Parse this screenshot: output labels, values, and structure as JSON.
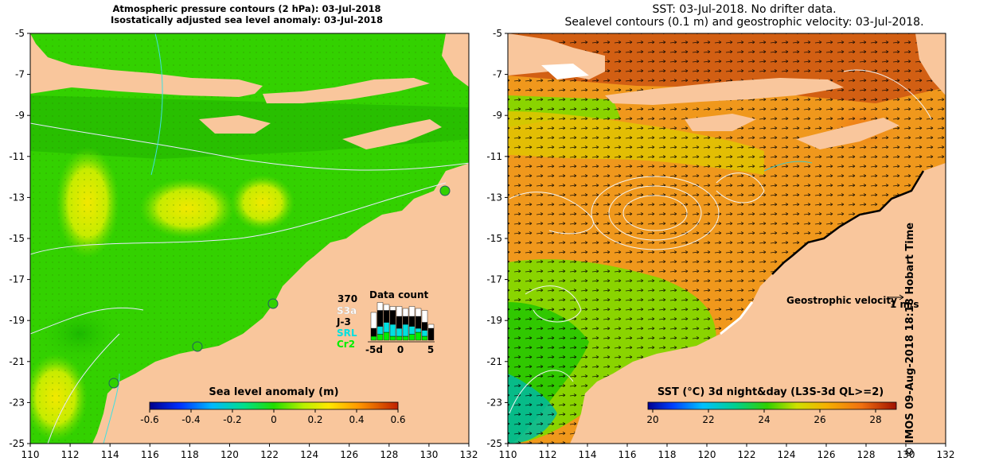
{
  "left_panel": {
    "title_line1": "Atmospheric pressure contours (2 hPa): 03-Jul-2018",
    "title_line2": "Isostatically adjusted sea level anomaly: 03-Jul-2018",
    "colorbar": {
      "label": "Sea level anomaly (m)",
      "ticks": [
        "-0.6",
        "-0.4",
        "-0.2",
        "0",
        "0.2",
        "0.4",
        "0.6"
      ]
    },
    "data_count": {
      "title": "Data count",
      "max_label": "370",
      "legend": [
        {
          "name": "S3a",
          "color": "#ffffff"
        },
        {
          "name": "J-3",
          "color": "#000000"
        },
        {
          "name": "SRL",
          "color": "#00e0e0"
        },
        {
          "name": "Cr2",
          "color": "#00ee00"
        }
      ],
      "x_ticks": [
        "-5d",
        "0",
        "5"
      ],
      "bars": [
        {
          "S3a": 0.4,
          "J-3": 0.2,
          "SRL": 0.0,
          "Cr2": 0.1
        },
        {
          "S3a": 0.2,
          "J-3": 0.4,
          "SRL": 0.2,
          "Cr2": 0.15
        },
        {
          "S3a": 0.15,
          "J-3": 0.3,
          "SRL": 0.25,
          "Cr2": 0.2
        },
        {
          "S3a": 0.1,
          "J-3": 0.35,
          "SRL": 0.3,
          "Cr2": 0.1
        },
        {
          "S3a": 0.25,
          "J-3": 0.3,
          "SRL": 0.2,
          "Cr2": 0.1
        },
        {
          "S3a": 0.2,
          "J-3": 0.2,
          "SRL": 0.3,
          "Cr2": 0.1
        },
        {
          "S3a": 0.25,
          "J-3": 0.25,
          "SRL": 0.2,
          "Cr2": 0.15
        },
        {
          "S3a": 0.2,
          "J-3": 0.3,
          "SRL": 0.1,
          "Cr2": 0.2
        },
        {
          "S3a": 0.3,
          "J-3": 0.2,
          "SRL": 0.15,
          "Cr2": 0.1
        },
        {
          "S3a": 0.1,
          "J-3": 0.3,
          "SRL": 0.0,
          "Cr2": 0.0
        }
      ]
    }
  },
  "right_panel": {
    "title_line1": "SST: 03-Jul-2018. No drifter data.",
    "title_line2": "Sealevel contours (0.1 m) and geostrophic velocity: 03-Jul-2018.",
    "velocity_label": "Geostrophic velocity",
    "velocity_scale": "1 m/s",
    "colorbar": {
      "label": "SST (°C) 3d night&day (L3S-3d QL>=2)",
      "ticks": [
        "20",
        "22",
        "24",
        "26",
        "28"
      ]
    }
  },
  "axes": {
    "lon_ticks": [
      "110",
      "112",
      "114",
      "116",
      "118",
      "120",
      "122",
      "124",
      "126",
      "128",
      "130",
      "132"
    ],
    "lat_ticks": [
      "-5",
      "-7",
      "-9",
      "-11",
      "-13",
      "-15",
      "-17",
      "-19",
      "-21",
      "-23",
      "-25"
    ]
  },
  "credit": "© IMOS 09-Aug-2018 18:18 Hobart Time",
  "colors": {
    "land": "#f9c69c",
    "sea_green": "#33d100",
    "sst_orange": "#f0981c"
  }
}
